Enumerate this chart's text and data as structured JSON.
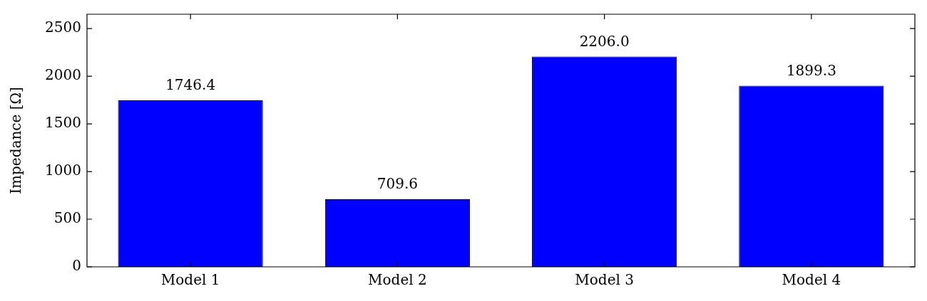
{
  "chart_data": {
    "type": "bar",
    "ylabel": "Impedance [Ω]",
    "categories": [
      "Model 1",
      "Model 2",
      "Model 3",
      "Model 4"
    ],
    "values": [
      1746.4,
      709.6,
      2206.0,
      1899.3
    ],
    "color": "#0000ff",
    "data_labels": true,
    "value_labels": [
      "1746.4",
      "709.6",
      "2206.0",
      "1899.3"
    ],
    "ylim": [
      0,
      2650
    ],
    "yticks": [
      0,
      500,
      1000,
      1500,
      2000,
      2500
    ],
    "grid": false
  }
}
